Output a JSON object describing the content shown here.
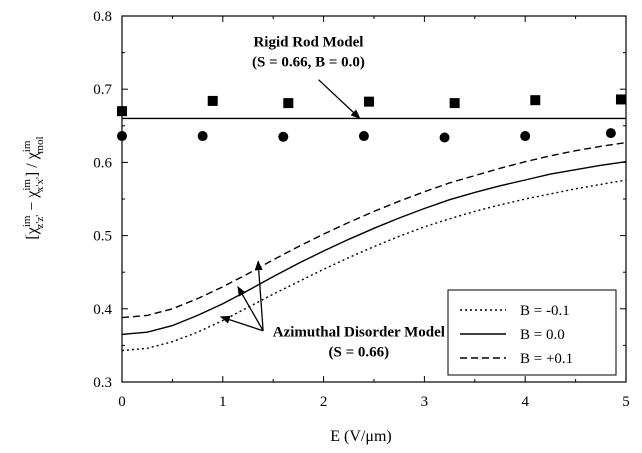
{
  "chart_data": {
    "type": "line",
    "xlabel": "E  (V/μm)",
    "ylabel": {
      "lead": "[χ",
      "sub1": "z'z'",
      "sup1": "im",
      "mid": " − χ",
      "sub2": "x'x'",
      "sup2": "im",
      "tail": "] / χ",
      "sub3": "mol",
      "sup3": "im"
    },
    "xlim": [
      0,
      5
    ],
    "ylim": [
      0.3,
      0.8
    ],
    "xticks": [
      0,
      1,
      2,
      3,
      4,
      5
    ],
    "yticks": [
      0.3,
      0.4,
      0.5,
      0.6,
      0.7,
      0.8
    ],
    "xtick_labels": [
      "0",
      "1",
      "2",
      "3",
      "4",
      "5"
    ],
    "ytick_labels": [
      "0.3",
      "0.4",
      "0.5",
      "0.6",
      "0.7",
      "0.8"
    ],
    "hlines": [
      {
        "y": 0.66,
        "style": "solid"
      }
    ],
    "scatter_series": [
      {
        "marker": "square",
        "points": [
          [
            0.0,
            0.67
          ],
          [
            0.9,
            0.684
          ],
          [
            1.65,
            0.681
          ],
          [
            2.45,
            0.683
          ],
          [
            3.3,
            0.681
          ],
          [
            4.1,
            0.685
          ],
          [
            4.95,
            0.686
          ]
        ]
      },
      {
        "marker": "circle",
        "points": [
          [
            0.0,
            0.636
          ],
          [
            0.8,
            0.636
          ],
          [
            1.6,
            0.635
          ],
          [
            2.4,
            0.636
          ],
          [
            3.2,
            0.634
          ],
          [
            4.0,
            0.636
          ],
          [
            4.85,
            0.64
          ]
        ]
      }
    ],
    "series": [
      {
        "name": "B = -0.1",
        "style": "dotted",
        "x": [
          0,
          0.25,
          0.5,
          0.75,
          1.0,
          1.25,
          1.5,
          1.75,
          2.0,
          2.25,
          2.5,
          2.75,
          3.0,
          3.25,
          3.5,
          3.75,
          4.0,
          4.25,
          4.5,
          4.75,
          5.0
        ],
        "y": [
          0.343,
          0.346,
          0.355,
          0.368,
          0.384,
          0.402,
          0.42,
          0.437,
          0.454,
          0.47,
          0.485,
          0.499,
          0.512,
          0.523,
          0.533,
          0.542,
          0.55,
          0.557,
          0.564,
          0.57,
          0.576
        ]
      },
      {
        "name": "B =  0.0",
        "style": "solid",
        "x": [
          0,
          0.25,
          0.5,
          0.75,
          1.0,
          1.25,
          1.5,
          1.75,
          2.0,
          2.25,
          2.5,
          2.75,
          3.0,
          3.25,
          3.5,
          3.75,
          4.0,
          4.25,
          4.5,
          4.75,
          5.0
        ],
        "y": [
          0.365,
          0.368,
          0.377,
          0.391,
          0.407,
          0.425,
          0.444,
          0.462,
          0.479,
          0.495,
          0.51,
          0.524,
          0.537,
          0.549,
          0.559,
          0.568,
          0.576,
          0.584,
          0.59,
          0.596,
          0.601
        ]
      },
      {
        "name": "B = +0.1",
        "style": "dashed",
        "x": [
          0,
          0.25,
          0.5,
          0.75,
          1.0,
          1.25,
          1.5,
          1.75,
          2.0,
          2.25,
          2.5,
          2.75,
          3.0,
          3.25,
          3.5,
          3.75,
          4.0,
          4.25,
          4.5,
          4.75,
          5.0
        ],
        "y": [
          0.388,
          0.391,
          0.4,
          0.414,
          0.43,
          0.448,
          0.467,
          0.485,
          0.502,
          0.518,
          0.533,
          0.547,
          0.56,
          0.572,
          0.582,
          0.592,
          0.601,
          0.609,
          0.616,
          0.622,
          0.627
        ]
      }
    ],
    "legend": {
      "placement": "bottom-right",
      "entries": [
        "B = -0.1",
        "B =  0.0",
        "B = +0.1"
      ]
    },
    "annotations": [
      {
        "id": "rigid",
        "lines": [
          "Rigid Rod Model",
          "(S = 0.66, B = 0.0)"
        ],
        "text_at": [
          1.85,
          0.758
        ],
        "arrows": [
          {
            "from": [
              1.95,
              0.713
            ],
            "to": [
              2.36,
              0.66
            ]
          }
        ]
      },
      {
        "id": "azimuthal",
        "lines": [
          "Azimuthal Disorder Model",
          "(S = 0.66)"
        ],
        "text_at": [
          2.35,
          0.362
        ],
        "arrows": [
          {
            "from": [
              1.4,
              0.37
            ],
            "to": [
              1.35,
              0.465
            ]
          },
          {
            "from": [
              1.4,
              0.37
            ],
            "to": [
              1.15,
              0.43
            ]
          },
          {
            "from": [
              1.4,
              0.37
            ],
            "to": [
              0.98,
              0.389
            ]
          }
        ]
      }
    ]
  }
}
